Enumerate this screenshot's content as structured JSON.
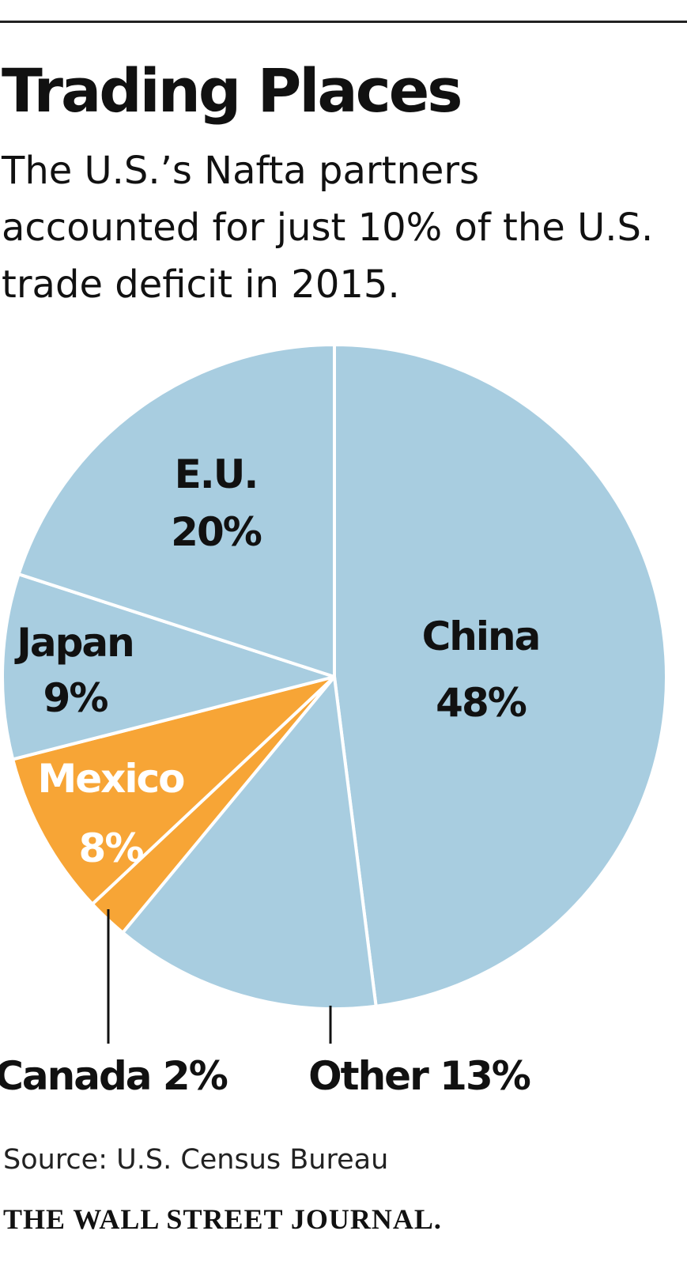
{
  "header": {
    "title": "Trading Places",
    "subtitle": "The U.S.’s Nafta partners accounted for just 10% of the U.S. trade deficit in 2015."
  },
  "chart_data": {
    "type": "pie",
    "title": "Trading Places",
    "subtitle": "The U.S.’s Nafta partners accounted for just 10% of the U.S. trade deficit in 2015.",
    "unit": "%",
    "slices": [
      {
        "name": "China",
        "value": 48,
        "value_label": "48%",
        "color": "#a8cde0",
        "label_color": "#111111"
      },
      {
        "name": "Other",
        "value": 13,
        "value_label": "Other 13%",
        "color": "#a8cde0",
        "label_color": "#111111"
      },
      {
        "name": "Canada",
        "value": 2,
        "value_label": "Canada 2%",
        "color": "#f7a536",
        "label_color": "#111111"
      },
      {
        "name": "Mexico",
        "value": 8,
        "value_label": "8%",
        "color": "#f7a536",
        "label_color": "#ffffff"
      },
      {
        "name": "Japan",
        "value": 9,
        "value_label": "9%",
        "color": "#a8cde0",
        "label_color": "#111111"
      },
      {
        "name": "E.U.",
        "value": 20,
        "value_label": "20%",
        "color": "#a8cde0",
        "label_color": "#111111"
      }
    ],
    "start_angle_deg": 0,
    "direction": "clockwise",
    "separator_color": "#ffffff"
  },
  "footer": {
    "source": "Source: U.S. Census Bureau",
    "publisher": "THE WALL STREET JOURNAL."
  },
  "colors": {
    "nafta_accent": "#f7a536",
    "slice_blue": "#a8cde0",
    "text": "#111111",
    "rule": "#222222"
  }
}
